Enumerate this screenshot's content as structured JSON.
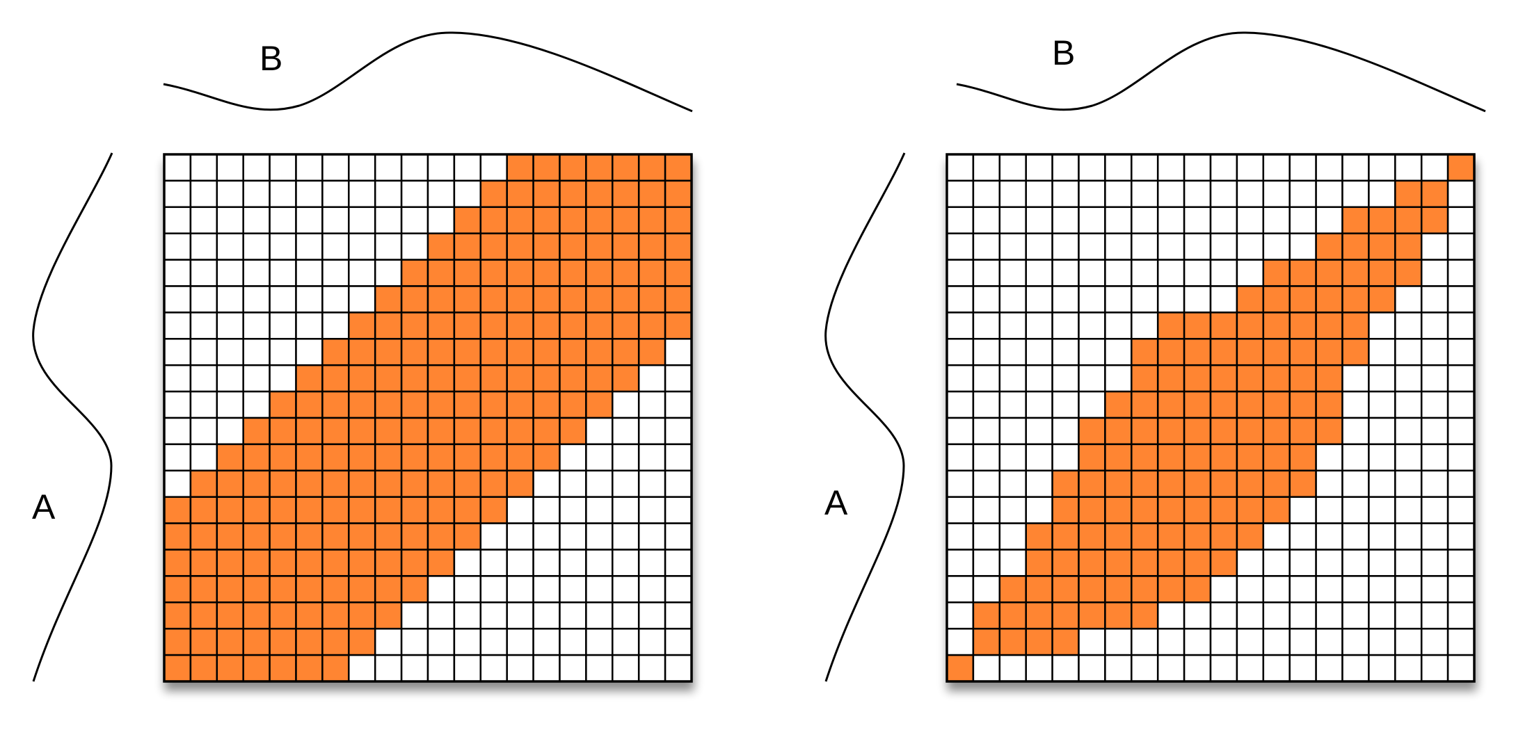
{
  "panels": [
    {
      "id": "left",
      "label_top": "B",
      "label_side": "A",
      "grid": {
        "rows": 20,
        "cols": 20,
        "fill_color": "#FF8533",
        "empty_color": "#FFFFFF",
        "filled_rows": [
          [
            13,
            19
          ],
          [
            12,
            19
          ],
          [
            11,
            19
          ],
          [
            10,
            19
          ],
          [
            9,
            19
          ],
          [
            8,
            19
          ],
          [
            7,
            19
          ],
          [
            6,
            18
          ],
          [
            5,
            17
          ],
          [
            4,
            16
          ],
          [
            3,
            15
          ],
          [
            2,
            14
          ],
          [
            1,
            13
          ],
          [
            0,
            12
          ],
          [
            0,
            11
          ],
          [
            0,
            10
          ],
          [
            0,
            9
          ],
          [
            0,
            8
          ],
          [
            0,
            7
          ],
          [
            0,
            6
          ]
        ]
      }
    },
    {
      "id": "right",
      "label_top": "B",
      "label_side": "A",
      "grid": {
        "rows": 20,
        "cols": 20,
        "fill_color": "#FF8533",
        "empty_color": "#FFFFFF",
        "filled_rows": [
          [
            19,
            19
          ],
          [
            17,
            18
          ],
          [
            15,
            18
          ],
          [
            14,
            17
          ],
          [
            12,
            17
          ],
          [
            11,
            16
          ],
          [
            8,
            15
          ],
          [
            7,
            15
          ],
          [
            7,
            14
          ],
          [
            6,
            14
          ],
          [
            5,
            14
          ],
          [
            5,
            13
          ],
          [
            4,
            13
          ],
          [
            4,
            12
          ],
          [
            3,
            11
          ],
          [
            3,
            10
          ],
          [
            2,
            9
          ],
          [
            1,
            7
          ],
          [
            1,
            4
          ],
          [
            0,
            0
          ]
        ]
      }
    }
  ]
}
